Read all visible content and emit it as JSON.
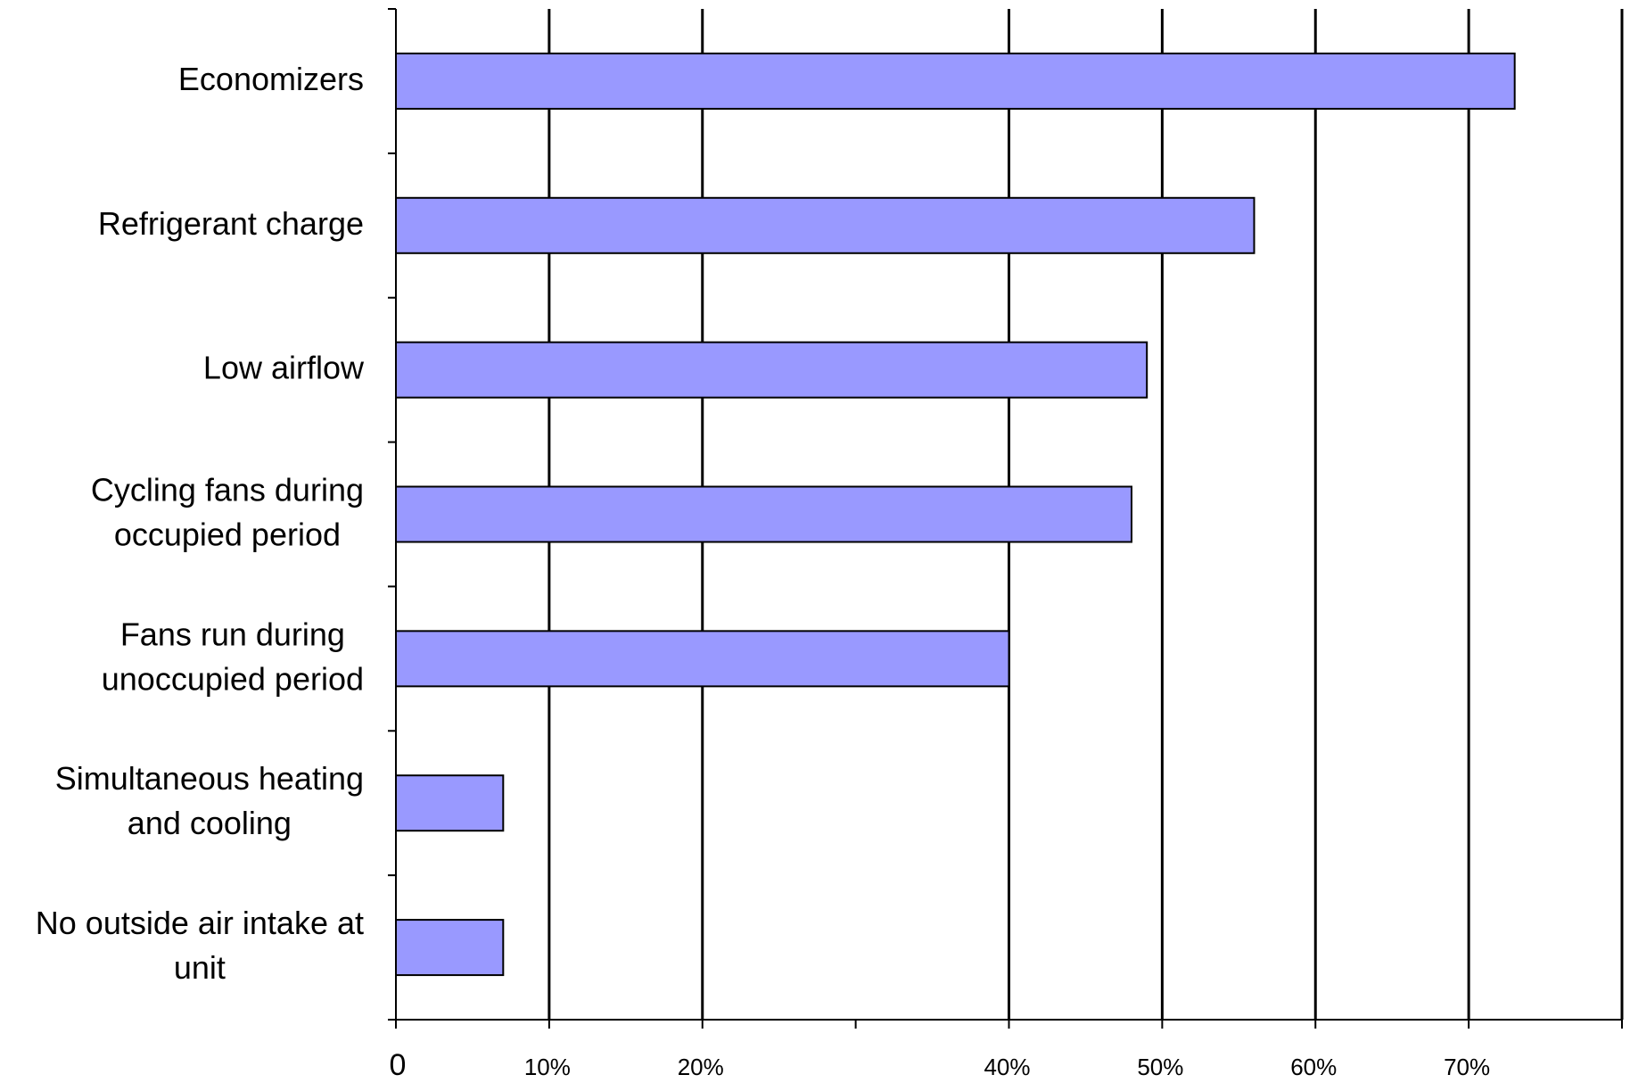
{
  "chart_data": {
    "type": "bar",
    "orientation": "horizontal",
    "title": "",
    "xlabel": "",
    "ylabel": "",
    "categories": [
      "Economizers",
      "Refrigerant charge",
      "Low airflow",
      "Cycling fans during occupied period",
      "Fans run during unoccupied period",
      "Simultaneous heating and cooling",
      "No outside air intake at unit"
    ],
    "category_lines": [
      [
        "Economizers"
      ],
      [
        "Refrigerant charge"
      ],
      [
        "Low airflow"
      ],
      [
        "Cycling fans during",
        "occupied period"
      ],
      [
        "Fans run during",
        "unoccupied period"
      ],
      [
        "Simultaneous heating",
        "and cooling"
      ],
      [
        "No outside air intake at",
        "unit"
      ]
    ],
    "values": [
      0.73,
      0.56,
      0.49,
      0.48,
      0.4,
      0.07,
      0.07
    ],
    "xlim": [
      0,
      0.8
    ],
    "x_ticks": [
      0,
      0.1,
      0.2,
      0.4,
      0.5,
      0.6,
      0.7
    ],
    "x_tick_labels": [
      "0",
      "10%",
      "20%",
      "40%",
      "50%",
      "60%",
      "70%"
    ],
    "gridlines_at": [
      0.1,
      0.2,
      0.4,
      0.5,
      0.6,
      0.7,
      0.8
    ],
    "grid": true,
    "legend": "none",
    "bar_color": "#9999ff",
    "bar_outline_color": "#000000"
  }
}
